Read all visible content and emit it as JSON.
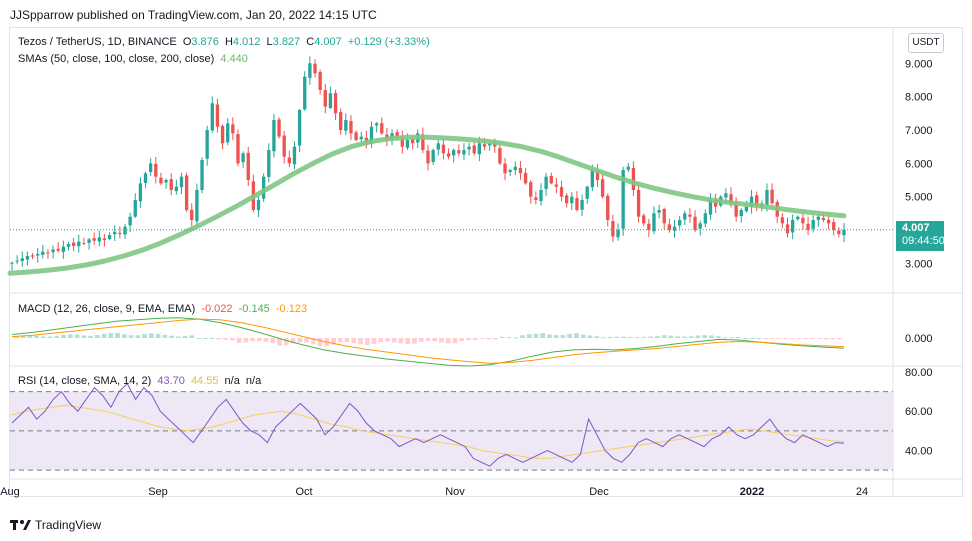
{
  "publish_line": "JJSpparrow published on TradingView.com, Jan 20, 2022 14:15 UTC",
  "footer_brand": "TradingView",
  "currency": "USDT",
  "price_tag": {
    "price": "4.007",
    "countdown": "09:44:50"
  },
  "colors": {
    "up": "#26a69a",
    "down": "#ef5350",
    "sma": "#81c784",
    "macd": "#4caf50",
    "signal": "#ff9800",
    "rsi": "#7e57c2",
    "rsi_ma": "#f2d25a",
    "rsi_band": "#ede7f6",
    "ohlc_label": "#26a69a"
  },
  "main_legend": {
    "symbol": "Tezos / TetherUS, 1D, BINANCE",
    "o_label": "O",
    "o": "3.876",
    "h_label": "H",
    "h": "4.012",
    "l_label": "L",
    "l": "3.827",
    "c_label": "C",
    "c": "4.007",
    "change": "+0.129 (+3.33%)",
    "sma_title": "SMAs (50, close, 100, close, 200, close)",
    "sma_value": "4.440"
  },
  "macd_legend": {
    "title": "MACD (12, 26, close, 9, EMA, EMA)",
    "hist": "-0.022",
    "macd": "-0.145",
    "signal": "-0.123"
  },
  "rsi_legend": {
    "title": "RSI (14, close, SMA, 14, 2)",
    "rsi": "43.70",
    "rsi_ma": "44.55",
    "na1": "n/a",
    "na2": "n/a"
  },
  "chart_data": {
    "type": "candlestick",
    "title": "Tezos / TetherUS, 1D, BINANCE",
    "x_ticks": [
      "Aug",
      "Sep",
      "Oct",
      "Nov",
      "Dec",
      "2022",
      "24"
    ],
    "price_axis": {
      "ticks": [
        "3.000",
        "4.000",
        "5.000",
        "6.000",
        "7.000",
        "8.000",
        "9.000"
      ],
      "ylim": [
        2.2,
        9.7
      ]
    },
    "macd_axis": {
      "ticks": [
        "0.000"
      ]
    },
    "rsi_axis": {
      "ticks": [
        "80.00",
        "60.00",
        "40.00"
      ],
      "ylim": [
        26,
        82
      ],
      "bands": [
        70,
        50,
        30
      ]
    },
    "closes": [
      3.02,
      3.08,
      3.15,
      3.22,
      3.2,
      3.28,
      3.35,
      3.3,
      3.42,
      3.38,
      3.5,
      3.58,
      3.52,
      3.65,
      3.6,
      3.72,
      3.68,
      3.78,
      3.7,
      3.85,
      3.95,
      3.88,
      4.1,
      4.4,
      4.9,
      5.4,
      5.7,
      6.0,
      5.6,
      5.4,
      5.5,
      5.2,
      5.3,
      5.6,
      4.6,
      4.3,
      5.2,
      6.1,
      7.0,
      7.8,
      7.1,
      6.6,
      7.2,
      6.9,
      6.0,
      6.3,
      5.5,
      4.6,
      4.9,
      5.6,
      6.4,
      7.3,
      6.8,
      6.2,
      6.0,
      6.5,
      7.6,
      8.6,
      9.0,
      8.7,
      8.2,
      7.7,
      8.1,
      7.5,
      7.0,
      7.3,
      6.9,
      6.7,
      6.8,
      6.6,
      7.1,
      7.2,
      6.9,
      6.7,
      6.9,
      6.8,
      6.5,
      6.7,
      6.6,
      6.9,
      6.4,
      6.0,
      6.4,
      6.6,
      6.3,
      6.2,
      6.4,
      6.3,
      6.4,
      6.5,
      6.3,
      6.6,
      6.5,
      6.6,
      6.5,
      6.0,
      5.7,
      5.8,
      5.9,
      5.7,
      5.4,
      5.0,
      4.9,
      5.2,
      5.6,
      5.4,
      5.3,
      5.0,
      4.8,
      5.0,
      4.6,
      4.9,
      5.3,
      5.8,
      5.5,
      5.0,
      4.3,
      3.8,
      4.0,
      5.8,
      5.9,
      5.2,
      4.4,
      4.2,
      4.0,
      4.5,
      4.6,
      4.2,
      4.0,
      4.1,
      4.3,
      4.5,
      4.4,
      4.0,
      4.2,
      4.5,
      4.9,
      4.7,
      5.0,
      5.1,
      4.8,
      4.4,
      4.6,
      4.7,
      5.0,
      4.7,
      4.8,
      5.2,
      4.8,
      4.4,
      4.2,
      3.9,
      4.3,
      4.4,
      4.2,
      4.0,
      4.3,
      4.4,
      4.3,
      4.2,
      4.0,
      3.876,
      4.007
    ],
    "sma_line": [
      2.7,
      2.74,
      2.79,
      2.86,
      2.95,
      3.07,
      3.22,
      3.4,
      3.62,
      3.87,
      4.14,
      4.43,
      4.73,
      5.05,
      5.37,
      5.7,
      6.0,
      6.28,
      6.5,
      6.65,
      6.74,
      6.78,
      6.78,
      6.76,
      6.72,
      6.67,
      6.6,
      6.5,
      6.36,
      6.18,
      5.98,
      5.78,
      5.58,
      5.4,
      5.25,
      5.12,
      5.0,
      4.9,
      4.82,
      4.76,
      4.69,
      4.61,
      4.54,
      4.48,
      4.43
    ],
    "sma_start": 0.03,
    "sma_end": 0.97,
    "rsi": [
      54,
      58,
      62,
      56,
      60,
      66,
      70,
      64,
      60,
      66,
      72,
      68,
      62,
      70,
      74,
      66,
      72,
      68,
      60,
      56,
      52,
      48,
      44,
      50,
      56,
      62,
      66,
      60,
      54,
      50,
      48,
      44,
      52,
      56,
      60,
      64,
      60,
      56,
      48,
      52,
      58,
      64,
      60,
      54,
      50,
      48,
      46,
      42,
      44,
      46,
      44,
      46,
      48,
      46,
      44,
      42,
      36,
      34,
      32,
      36,
      38,
      36,
      34,
      36,
      38,
      40,
      38,
      36,
      34,
      38,
      56,
      48,
      40,
      36,
      34,
      38,
      44,
      46,
      44,
      42,
      46,
      48,
      46,
      44,
      42,
      46,
      48,
      52,
      48,
      46,
      48,
      52,
      56,
      50,
      46,
      44,
      48,
      46,
      44,
      42,
      44,
      43.7
    ],
    "rsi_ma": [
      58,
      60,
      61,
      62,
      63,
      62,
      61,
      60,
      58,
      56,
      54,
      52,
      51,
      50,
      51,
      52,
      54,
      56,
      58,
      59,
      60,
      59,
      57,
      55,
      53,
      52,
      50,
      49,
      48,
      47,
      46,
      45,
      44,
      43,
      42,
      40,
      39,
      38,
      37,
      36,
      36,
      37,
      38,
      39,
      40,
      41,
      42,
      43,
      44,
      45,
      46,
      47,
      48,
      49,
      50,
      51,
      50,
      49,
      48,
      47,
      46,
      45,
      44.55
    ],
    "macd": [
      0.05,
      0.08,
      0.12,
      0.16,
      0.2,
      0.24,
      0.26,
      0.28,
      0.29,
      0.27,
      0.22,
      0.15,
      0.07,
      -0.02,
      -0.1,
      -0.17,
      -0.22,
      -0.26,
      -0.3,
      -0.33,
      -0.36,
      -0.39,
      -0.4,
      -0.38,
      -0.33,
      -0.26,
      -0.2,
      -0.17,
      -0.16,
      -0.17,
      -0.15,
      -0.12,
      -0.08,
      -0.05,
      -0.02,
      -0.03,
      -0.06,
      -0.09,
      -0.11,
      -0.13,
      -0.145
    ],
    "signal": [
      0.02,
      0.04,
      0.07,
      0.1,
      0.13,
      0.16,
      0.19,
      0.22,
      0.25,
      0.27,
      0.26,
      0.22,
      0.16,
      0.09,
      0.02,
      -0.05,
      -0.11,
      -0.16,
      -0.2,
      -0.24,
      -0.28,
      -0.31,
      -0.34,
      -0.36,
      -0.35,
      -0.32,
      -0.28,
      -0.24,
      -0.21,
      -0.19,
      -0.17,
      -0.15,
      -0.12,
      -0.09,
      -0.06,
      -0.05,
      -0.06,
      -0.08,
      -0.1,
      -0.11,
      -0.123
    ],
    "macd_hist": [
      0.03,
      0.04,
      0.05,
      0.06,
      0.07,
      0.08,
      0.07,
      0.06,
      0.04,
      0.0,
      -0.04,
      -0.07,
      -0.09,
      -0.11,
      -0.12,
      -0.12,
      -0.11,
      -0.1,
      -0.1,
      -0.09,
      -0.08,
      -0.08,
      -0.06,
      -0.02,
      0.02,
      0.06,
      0.08,
      0.07,
      0.05,
      0.02,
      0.02,
      0.03,
      0.04,
      0.04,
      0.04,
      0.02,
      0.0,
      -0.01,
      -0.01,
      -0.02,
      -0.022
    ]
  }
}
